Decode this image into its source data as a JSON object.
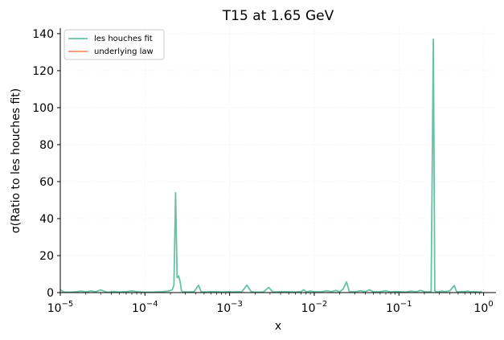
{
  "chart_data": {
    "type": "line",
    "title": "T15 at 1.65 GeV",
    "xlabel": "x",
    "ylabel": "σ(Ratio to les houches fit)",
    "x_scale": "log",
    "xlim": [
      1e-05,
      1.4
    ],
    "ylim": [
      0,
      143
    ],
    "x_ticks": [
      {
        "value": 1e-05,
        "base": "10",
        "exp": "−5"
      },
      {
        "value": 0.0001,
        "base": "10",
        "exp": "−4"
      },
      {
        "value": 0.001,
        "base": "10",
        "exp": "−3"
      },
      {
        "value": 0.01,
        "base": "10",
        "exp": "−2"
      },
      {
        "value": 0.1,
        "base": "10",
        "exp": "−1"
      },
      {
        "value": 1,
        "base": "10",
        "exp": "0"
      }
    ],
    "y_ticks": [
      0,
      20,
      40,
      60,
      80,
      100,
      120,
      140
    ],
    "grid": true,
    "legend_position": "top-left",
    "series": [
      {
        "name": "les houches fit",
        "color": "#66c2a5",
        "x": [
          1e-05,
          1.1e-05,
          1.3e-05,
          1.5e-05,
          1.8e-05,
          2e-05,
          2.3e-05,
          2.6e-05,
          3e-05,
          3.5e-05,
          3.8e-05,
          4.2e-05,
          5e-05,
          6e-05,
          7e-05,
          8e-05,
          0.0001,
          0.00013,
          0.00016,
          0.00019,
          0.00021,
          0.00022,
          0.00023,
          0.00024,
          0.00025,
          0.00026,
          0.00027,
          0.00028,
          0.00032,
          0.00038,
          0.00043,
          0.00046,
          0.0005,
          0.0006,
          0.0007,
          0.0008,
          0.001,
          0.0011,
          0.0012,
          0.0014,
          0.0016,
          0.0018,
          0.002,
          0.0025,
          0.0029,
          0.0032,
          0.0035,
          0.004,
          0.005,
          0.006,
          0.007,
          0.0075,
          0.008,
          0.009,
          0.01,
          0.012,
          0.014,
          0.016,
          0.018,
          0.02,
          0.022,
          0.024,
          0.026,
          0.03,
          0.035,
          0.04,
          0.045,
          0.05,
          0.06,
          0.07,
          0.08,
          0.09,
          0.1,
          0.12,
          0.14,
          0.16,
          0.18,
          0.2,
          0.22,
          0.24,
          0.255,
          0.265,
          0.275,
          0.29,
          0.32,
          0.35,
          0.4,
          0.45,
          0.48,
          0.5,
          0.55,
          0.6,
          0.65,
          0.7,
          0.8,
          0.9,
          0.95
        ],
        "values": [
          1.5,
          0.3,
          0.2,
          0.4,
          0.8,
          0.3,
          0.9,
          0.4,
          1.4,
          0.3,
          0.2,
          0.6,
          0.3,
          0.5,
          0.9,
          0.5,
          0.2,
          0.3,
          0.5,
          0.8,
          1.5,
          4,
          54,
          8,
          9,
          6,
          1,
          0.4,
          0.3,
          0.5,
          4,
          0.5,
          0.3,
          0.4,
          0.5,
          0.3,
          0.5,
          0.3,
          0.4,
          0.5,
          4,
          0.5,
          0.2,
          0.3,
          2.8,
          0.5,
          0.3,
          0.5,
          0.4,
          0.3,
          0.6,
          1.5,
          0.4,
          0.8,
          0.5,
          0.4,
          1,
          0.5,
          1.2,
          0.4,
          2,
          5.8,
          0.5,
          0.4,
          1,
          0.5,
          1.5,
          0.4,
          0.5,
          1,
          0.3,
          0.6,
          0.5,
          0.3,
          0.8,
          0.4,
          1.2,
          0.5,
          0.3,
          0.6,
          137,
          1,
          0.5,
          0.3,
          0.8,
          0.5,
          1,
          3.8,
          0.5,
          0.3,
          0.6,
          0.5,
          0.8,
          0.4,
          0.5,
          0.3,
          0.6
        ]
      },
      {
        "name": "underlying law",
        "color": "#fc8d62",
        "x": [],
        "values": []
      }
    ]
  }
}
